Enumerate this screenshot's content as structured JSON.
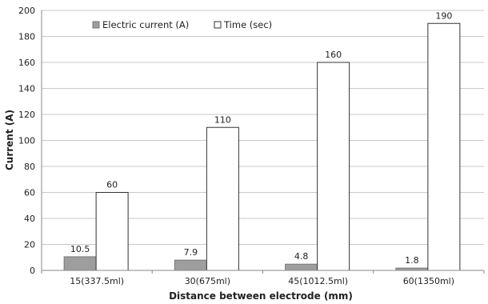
{
  "chart_data": {
    "type": "bar",
    "categories": [
      "15(337.5ml)",
      "30(675ml)",
      "45(1012.5ml)",
      "60(1350ml)"
    ],
    "series": [
      {
        "name": "Electric current (A)",
        "values": [
          10.5,
          7.9,
          4.8,
          1.8
        ],
        "color": "#9e9e9e",
        "stroke": "#777777"
      },
      {
        "name": "Time (sec)",
        "values": [
          60,
          110,
          160,
          190
        ],
        "color": "#ffffff",
        "stroke": "#333333"
      }
    ],
    "data_labels": [
      [
        "10.5",
        "7.9",
        "4.8",
        "1.8"
      ],
      [
        "60",
        "110",
        "160",
        "190"
      ]
    ],
    "xlabel": "Distance between electrode (mm)",
    "ylabel": "Current  (A)",
    "ylim": [
      0,
      200
    ],
    "yticks": [
      "0",
      "20",
      "40",
      "60",
      "80",
      "100",
      "120",
      "140",
      "160",
      "180",
      "200"
    ],
    "grid": true,
    "legend": "top-left"
  }
}
